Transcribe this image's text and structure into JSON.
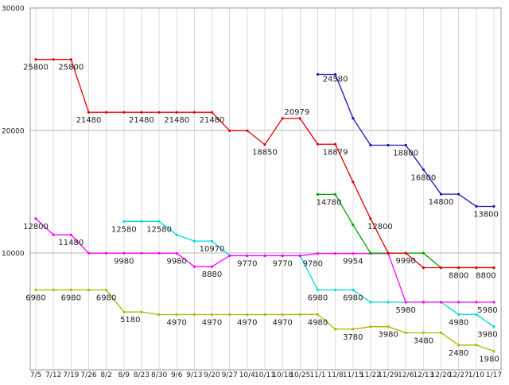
{
  "chart_data": {
    "type": "line",
    "title": "",
    "xlabel": "",
    "ylabel": "",
    "ylim": [
      0,
      30000
    ],
    "grid": true,
    "background": "#ffffff",
    "grid_color": "#dcdcdc",
    "hgrid_color": "#b5b5b5",
    "frame_color": "#999999",
    "label_color": "#222222",
    "tick_color": "#222222",
    "y_ticks": [
      30000,
      20000,
      10000
    ],
    "y_tick_labels": [
      "30000",
      "20000",
      "10000"
    ],
    "x_labels": [
      "7/5",
      "7/12",
      "7/19",
      "7/26",
      "8/2",
      "8/9",
      "8/23",
      "8/30",
      "9/6",
      "9/13",
      "9/20",
      "9/27",
      "10/4",
      "10/11",
      "10/18",
      "10/25",
      "11/1",
      "11/8",
      "11/15",
      "11/22",
      "11/29",
      "12/6",
      "12/13",
      "12/20",
      "12/27",
      "1/10",
      "1/17"
    ],
    "series": [
      {
        "name": "red",
        "color": "#e60000",
        "values": [
          25800,
          25800,
          25800,
          21480,
          21480,
          21480,
          21480,
          21480,
          21480,
          21480,
          21480,
          19980,
          19980,
          18850,
          20979,
          20979,
          18879,
          18879,
          15800,
          12800,
          9990,
          9990,
          8800,
          8800,
          8800,
          8800,
          8800
        ]
      },
      {
        "name": "blue",
        "color": "#1414b8",
        "values": [
          null,
          null,
          null,
          null,
          null,
          null,
          null,
          null,
          null,
          null,
          null,
          null,
          null,
          null,
          null,
          null,
          24580,
          24580,
          21000,
          18800,
          18800,
          18800,
          16800,
          14800,
          14800,
          13800,
          13800
        ]
      },
      {
        "name": "green",
        "color": "#00a000",
        "values": [
          null,
          null,
          null,
          null,
          null,
          null,
          null,
          null,
          null,
          null,
          null,
          null,
          null,
          null,
          null,
          null,
          14780,
          14780,
          12300,
          9990,
          9990,
          9990,
          9990,
          8800,
          8800,
          8800,
          8800
        ]
      },
      {
        "name": "magenta",
        "color": "#ff00ff",
        "values": [
          12800,
          11480,
          11480,
          9980,
          9980,
          9980,
          9980,
          9980,
          9980,
          8880,
          8880,
          9770,
          9770,
          9770,
          9770,
          9770,
          9954,
          9954,
          9954,
          9954,
          9954,
          5980,
          5980,
          5980,
          5980,
          5980,
          5980
        ]
      },
      {
        "name": "cyan",
        "color": "#00d9d9",
        "values": [
          null,
          null,
          null,
          null,
          null,
          12580,
          12580,
          12580,
          11480,
          10970,
          10970,
          9780,
          9780,
          9780,
          9780,
          9780,
          6980,
          6980,
          6980,
          5980,
          5980,
          5980,
          5980,
          5980,
          4980,
          4980,
          3980
        ]
      },
      {
        "name": "olive",
        "color": "#b4b400",
        "values": [
          6980,
          6980,
          6980,
          6980,
          6980,
          5180,
          5180,
          4970,
          4970,
          4970,
          4970,
          4970,
          4970,
          4970,
          4970,
          4980,
          4980,
          3780,
          3780,
          3980,
          3980,
          3480,
          3480,
          3480,
          2480,
          2480,
          1980
        ]
      }
    ],
    "annotations": [
      [
        0,
        0,
        "25800"
      ],
      [
        0,
        2,
        "25800"
      ],
      [
        0,
        3,
        "21480"
      ],
      [
        0,
        6,
        "21480"
      ],
      [
        0,
        8,
        "21480"
      ],
      [
        0,
        10,
        "21480"
      ],
      [
        0,
        13,
        "18850"
      ],
      [
        0,
        15,
        "20979",
        -4,
        -5
      ],
      [
        0,
        17,
        "18879"
      ],
      [
        0,
        19,
        "12800",
        12
      ],
      [
        0,
        26,
        "8800",
        -10
      ],
      [
        1,
        17,
        "24580",
        0,
        9
      ],
      [
        1,
        21,
        "18800"
      ],
      [
        1,
        22,
        "16800"
      ],
      [
        1,
        23,
        "14800"
      ],
      [
        1,
        26,
        "13800",
        -10
      ],
      [
        2,
        16,
        "14780",
        14
      ],
      [
        2,
        21,
        "9990"
      ],
      [
        2,
        24,
        "8800"
      ],
      [
        3,
        0,
        "12800"
      ],
      [
        3,
        2,
        "11480"
      ],
      [
        3,
        5,
        "9980"
      ],
      [
        3,
        8,
        "9980"
      ],
      [
        3,
        10,
        "8880"
      ],
      [
        3,
        12,
        "9770"
      ],
      [
        3,
        14,
        "9770"
      ],
      [
        3,
        18,
        "9954"
      ],
      [
        3,
        26,
        "5980",
        -8
      ],
      [
        4,
        5,
        "12580"
      ],
      [
        4,
        7,
        "12580"
      ],
      [
        4,
        10,
        "10970"
      ],
      [
        4,
        15,
        "9780",
        16
      ],
      [
        4,
        16,
        "6980"
      ],
      [
        4,
        18,
        "6980"
      ],
      [
        4,
        21,
        "5980"
      ],
      [
        4,
        24,
        "4980"
      ],
      [
        4,
        26,
        "3980",
        -8
      ],
      [
        5,
        0,
        "6980"
      ],
      [
        5,
        2,
        "6980"
      ],
      [
        5,
        4,
        "6980"
      ],
      [
        5,
        5,
        "5180",
        8
      ],
      [
        5,
        8,
        "4970"
      ],
      [
        5,
        10,
        "4970"
      ],
      [
        5,
        12,
        "4970"
      ],
      [
        5,
        14,
        "4970"
      ],
      [
        5,
        16,
        "4980"
      ],
      [
        5,
        18,
        "3780"
      ],
      [
        5,
        20,
        "3980"
      ],
      [
        5,
        22,
        "3480"
      ],
      [
        5,
        24,
        "2480"
      ],
      [
        5,
        26,
        "1980",
        -6
      ]
    ]
  }
}
